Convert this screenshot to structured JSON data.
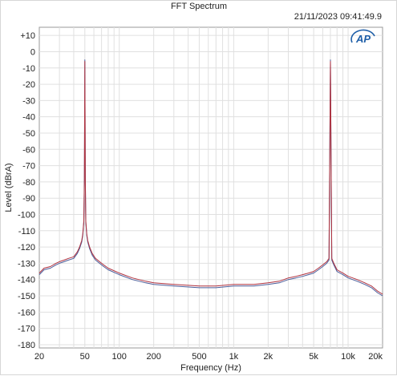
{
  "window": {
    "title": "FFT Spectrum",
    "timestamp": "21/11/2023 09:41:49.9",
    "logo_text": "AP"
  },
  "chart_data": {
    "type": "line",
    "title": "FFT Spectrum",
    "xlabel": "Frequency (Hz)",
    "ylabel": "Level (dBrA)",
    "x_scale": "log",
    "xlim": [
      20,
      20000
    ],
    "ylim": [
      -182,
      15
    ],
    "x_ticks": [
      {
        "value": 20,
        "label": "20"
      },
      {
        "value": 50,
        "label": "50"
      },
      {
        "value": 100,
        "label": "100"
      },
      {
        "value": 200,
        "label": "200"
      },
      {
        "value": 500,
        "label": "500"
      },
      {
        "value": 1000,
        "label": "1k"
      },
      {
        "value": 2000,
        "label": "2k"
      },
      {
        "value": 5000,
        "label": "5k"
      },
      {
        "value": 10000,
        "label": "10k"
      },
      {
        "value": 20000,
        "label": "20k"
      }
    ],
    "y_ticks": [
      {
        "value": 10,
        "label": "+10"
      },
      {
        "value": 0,
        "label": "0"
      },
      {
        "value": -10,
        "label": "-10"
      },
      {
        "value": -20,
        "label": "-20"
      },
      {
        "value": -30,
        "label": "-30"
      },
      {
        "value": -40,
        "label": "-40"
      },
      {
        "value": -50,
        "label": "-50"
      },
      {
        "value": -60,
        "label": "-60"
      },
      {
        "value": -70,
        "label": "-70"
      },
      {
        "value": -80,
        "label": "-80"
      },
      {
        "value": -90,
        "label": "-90"
      },
      {
        "value": -100,
        "label": "-100"
      },
      {
        "value": -110,
        "label": "-110"
      },
      {
        "value": -120,
        "label": "-120"
      },
      {
        "value": -130,
        "label": "-130"
      },
      {
        "value": -140,
        "label": "-140"
      },
      {
        "value": -150,
        "label": "-150"
      },
      {
        "value": -160,
        "label": "-160"
      },
      {
        "value": -170,
        "label": "-170"
      },
      {
        "value": -180,
        "label": "-180"
      }
    ],
    "grid": true,
    "colors": {
      "series_1": "#4a5d9a",
      "series_2": "#b0323f",
      "grid": "#e0e0e0",
      "logo": "#1f5fa8"
    },
    "series": [
      {
        "x": [
          20,
          22,
          25,
          28,
          30,
          33,
          36,
          40,
          43,
          45,
          47,
          48,
          49,
          49.5,
          50,
          50.5,
          51,
          52,
          53,
          55,
          58,
          62,
          70,
          80,
          100,
          130,
          170,
          200,
          300,
          500,
          700,
          1000,
          1500,
          2000,
          2500,
          3000,
          3500,
          4000,
          4500,
          5000,
          5500,
          6000,
          6500,
          6800,
          7000,
          7200,
          7500,
          8000,
          9000,
          10000,
          12000,
          14000,
          16000,
          18000,
          20000
        ],
        "values": [
          -137,
          -134,
          -133,
          -131,
          -130,
          -129,
          -128,
          -127,
          -124,
          -121,
          -117,
          -113,
          -105,
          -80,
          -5,
          -80,
          -105,
          -113,
          -117,
          -121,
          -125,
          -128,
          -131,
          -134,
          -137,
          -140,
          -142,
          -143,
          -144,
          -145,
          -145,
          -144,
          -144,
          -143,
          -142,
          -140,
          -139,
          -138,
          -137,
          -136,
          -134,
          -132,
          -130,
          -128,
          -5,
          -128,
          -131,
          -135,
          -137,
          -139,
          -141,
          -143,
          -145,
          -148,
          -150
        ]
      },
      {
        "x": [
          20,
          22,
          25,
          28,
          30,
          33,
          36,
          40,
          43,
          45,
          47,
          48,
          49,
          49.5,
          50,
          50.5,
          51,
          52,
          53,
          55,
          58,
          62,
          70,
          80,
          100,
          130,
          170,
          200,
          300,
          500,
          700,
          1000,
          1500,
          2000,
          2500,
          3000,
          3500,
          4000,
          4500,
          5000,
          5500,
          6000,
          6500,
          6800,
          7000,
          7200,
          7500,
          8000,
          9000,
          10000,
          12000,
          14000,
          16000,
          18000,
          20000
        ],
        "values": [
          -136,
          -133,
          -132,
          -130,
          -129,
          -128,
          -127,
          -126,
          -123,
          -120,
          -116,
          -112,
          -104,
          -79,
          -6,
          -79,
          -104,
          -112,
          -116,
          -120,
          -124,
          -127,
          -130,
          -133,
          -136,
          -139,
          -141,
          -142,
          -143,
          -144,
          -144,
          -143,
          -143,
          -142,
          -141,
          -139,
          -138,
          -137,
          -136,
          -135,
          -133,
          -131,
          -129,
          -127,
          -6,
          -127,
          -130,
          -134,
          -136,
          -138,
          -140,
          -142,
          -144,
          -147,
          -149
        ]
      }
    ]
  }
}
